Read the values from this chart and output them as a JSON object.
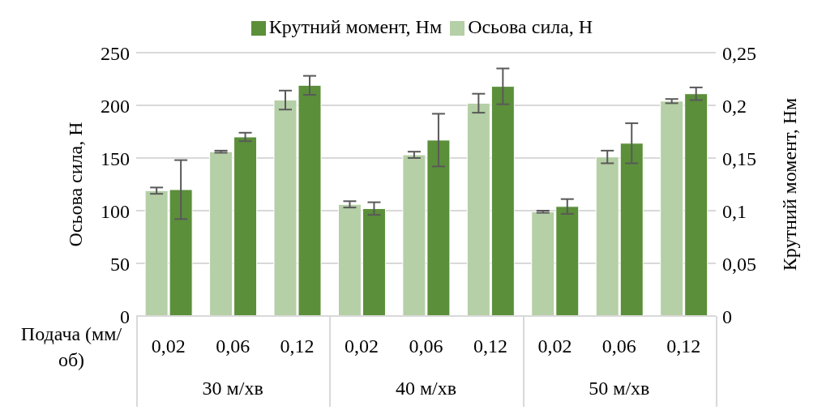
{
  "chart_data": {
    "type": "bar",
    "xlabel": "Подача (мм/об)",
    "ylabel": "Осьова сила, Н",
    "y2label": "Крутний момент, Нм",
    "categories": [
      "0,02",
      "0,06",
      "0,12",
      "0,02",
      "0,06",
      "0,12",
      "0,02",
      "0,06",
      "0,12"
    ],
    "annotations": [
      "30 м/хв",
      "40 м/хв",
      "50 м/хв"
    ],
    "series": [
      {
        "name": "Осьова сила, Н",
        "color": "#b5cfa6",
        "values": [
          119,
          156,
          205,
          106,
          153,
          202,
          99,
          151,
          204
        ],
        "errors": [
          3,
          1,
          9,
          3,
          3,
          9,
          1,
          6,
          2
        ]
      },
      {
        "name": "Крутний момент, Нм",
        "color": "#5b8f3a",
        "axis": "y2",
        "values": [
          0.12,
          0.17,
          0.219,
          0.102,
          0.167,
          0.218,
          0.104,
          0.164,
          0.211
        ],
        "errors": [
          0.028,
          0.004,
          0.009,
          0.006,
          0.025,
          0.017,
          0.007,
          0.019,
          0.006
        ]
      }
    ],
    "ylim": [
      0,
      250
    ],
    "yticks": [
      0,
      50,
      100,
      150,
      200,
      250
    ],
    "y2lim": [
      0,
      0.25
    ],
    "y2ticks": [
      0,
      {
        "value": 0.05,
        "label": "0,05"
      },
      {
        "value": 0.1,
        "label": "0,1"
      },
      {
        "value": 0.15,
        "label": "0,15"
      },
      {
        "value": 0.2,
        "label": "0,2"
      },
      {
        "value": 0.25,
        "label": "0,25"
      }
    ],
    "grid": "y",
    "legend": "top"
  }
}
